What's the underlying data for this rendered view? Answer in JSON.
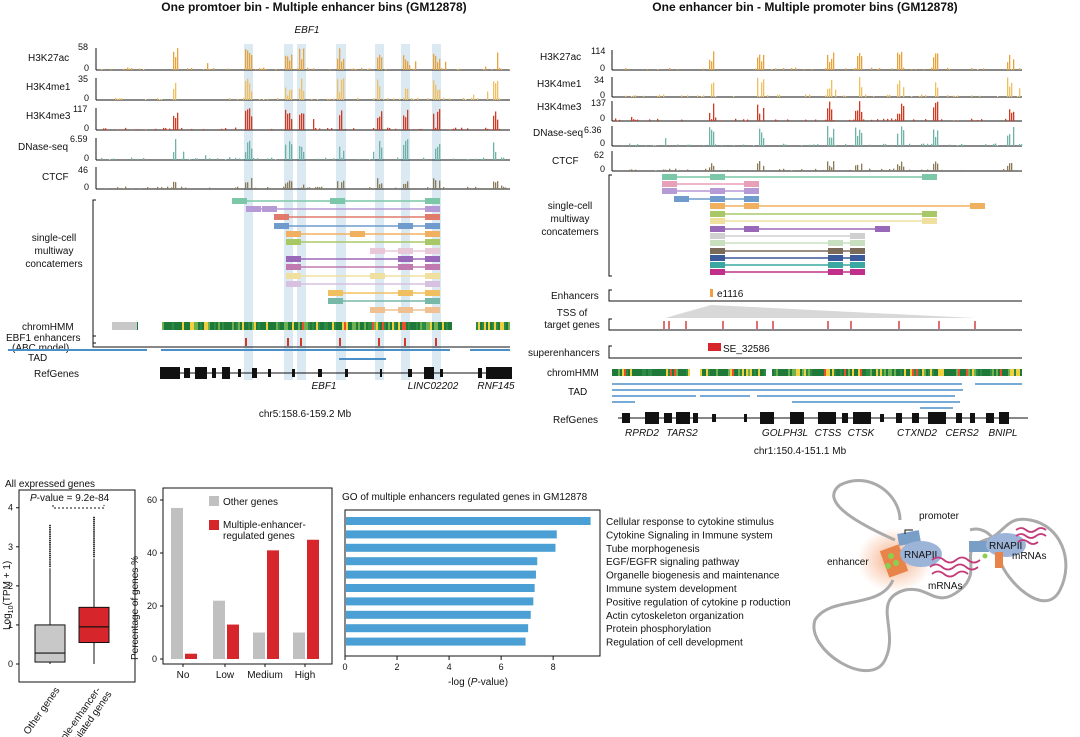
{
  "left_panel": {
    "title": "One promtoer bin - Multiple enhancer bins (GM12878)",
    "gene_title": "EBF1",
    "tracks": [
      {
        "name": "H3K27ac",
        "max": "58",
        "min": "0",
        "color": "#e8a23a"
      },
      {
        "name": "H3K4me1",
        "max": "35",
        "min": "0",
        "color": "#f0c060"
      },
      {
        "name": "H3K4me3",
        "max": "117",
        "min": "0",
        "color": "#d13a22"
      },
      {
        "name": "DNase-seq",
        "max": "6.59",
        "min": "0",
        "color": "#6fb3a8"
      },
      {
        "name": "CTCF",
        "max": "46",
        "min": "0",
        "color": "#8a7a5a"
      }
    ],
    "concatemer_label": [
      "single-cell",
      "multiway",
      "concatemers"
    ],
    "chromhmm_label": "chromHMM",
    "abc_label": [
      "EBF1 enhancers",
      "(ABC model)"
    ],
    "tad_label": "TAD",
    "refgenes_label": "RefGenes",
    "genes": [
      "EBF1",
      "LINC02202",
      "RNF145"
    ],
    "coord": "chr5:158.6-159.2 Mb"
  },
  "right_panel": {
    "title": "One enhancer bin - Multiple promoter bins (GM12878)",
    "tracks": [
      {
        "name": "H3K27ac",
        "max": "114",
        "min": "0",
        "color": "#e8a23a"
      },
      {
        "name": "H3K4me1",
        "max": "34",
        "min": "0",
        "color": "#f0c060"
      },
      {
        "name": "H3K4me3",
        "max": "137",
        "min": "0",
        "color": "#d13a22"
      },
      {
        "name": "DNase-seq",
        "max": "6.36",
        "min": "0",
        "color": "#6fb3a8"
      },
      {
        "name": "CTCF",
        "max": "62",
        "min": "0",
        "color": "#8a7a5a"
      }
    ],
    "concatemer_label": [
      "single-cell",
      "multiway",
      "concatemers"
    ],
    "enhancers_label": "Enhancers",
    "enhancer_id": "e1116",
    "tss_label": [
      "TSS of",
      "target genes"
    ],
    "superenhancer_label": "superenhancers",
    "superenhancer_id": "SE_32586",
    "chromhmm_label": "chromHMM",
    "tad_label": "TAD",
    "refgenes_label": "RefGenes",
    "genes": [
      "RPRD2",
      "TARS2",
      "GOLPH3L",
      "CTSS",
      "CTSK",
      "CTXND2",
      "CERS2",
      "BNIPL"
    ],
    "coord": "chr1:150.4-151.1 Mb"
  },
  "boxplot": {
    "title": "All expressed genes",
    "pvalue_label": "P",
    "pvalue_text": "-value = 9.2e-84",
    "ylabel_pre": "Log",
    "ylabel_sub": "10",
    "ylabel_post": "(TPM + 1)",
    "yticks": [
      "0",
      "1",
      "2",
      "3",
      "4"
    ],
    "categories": [
      "Other genes",
      "Multiple-enhancer-",
      "regulated genes"
    ],
    "chart_data": {
      "type": "boxplot",
      "ylim": [
        0,
        4.3
      ],
      "series": [
        {
          "name": "Other genes",
          "q1": 0.05,
          "median": 0.28,
          "q3": 1.0,
          "whisker_low": 0,
          "whisker_high": 2.45,
          "color": "#c8c8c8"
        },
        {
          "name": "Multiple-enhancer-regulated genes",
          "q1": 0.55,
          "median": 0.95,
          "q3": 1.45,
          "whisker_low": 0,
          "whisker_high": 2.7,
          "color": "#d7262b"
        }
      ]
    }
  },
  "bar_chart": {
    "ylabel": "Percentage of genes %",
    "legend": [
      "Other genes",
      "Multiple-enhancer-",
      "regulated genes"
    ],
    "yticks": [
      "0",
      "20",
      "40",
      "60"
    ],
    "chart_data": {
      "type": "bar",
      "categories": [
        "No",
        "Low",
        "Medium",
        "High"
      ],
      "ylim": [
        0,
        60
      ],
      "series": [
        {
          "name": "Other genes",
          "values": [
            57,
            22,
            10,
            10
          ],
          "color": "#c0c0c0"
        },
        {
          "name": "Multiple-enhancer-regulated genes",
          "values": [
            2,
            13,
            41,
            45
          ],
          "color": "#d7262b"
        }
      ]
    }
  },
  "go_chart": {
    "title": "GO of  multiple enhancers regulated genes in GM12878",
    "xlabel_pre": "-log  (",
    "xlabel_p": "P",
    "xlabel_post": "-value)",
    "xticks": [
      "0",
      "2",
      "4",
      "6",
      "8"
    ],
    "chart_data": {
      "type": "bar",
      "orientation": "horizontal",
      "categories": [
        "Cellular response to cytokine stimulus",
        "Cytokine Signaling in Immune system",
        "Tube morphogenesis",
        "EGF/EGFR signaling pathway",
        "Organelle biogenesis and maintenance",
        "Immune system development",
        "Positive regulation of cytokine p roduction",
        "Actin cytoskeleton organization",
        "Protein phosphorylation",
        "Regulation of cell development"
      ],
      "values": [
        9.4,
        8.1,
        8.05,
        7.35,
        7.3,
        7.25,
        7.2,
        7.1,
        7.0,
        6.9
      ],
      "xlim": [
        0,
        9.8
      ],
      "color": "#4a9fd5"
    }
  },
  "schematic": {
    "promoter": "promoter",
    "enhancer": "enhancer",
    "rnap1": "RNAPII",
    "rnap2": "RNAPII",
    "mrnas1": "mRNAs",
    "mrnas2": "mRNAs"
  }
}
